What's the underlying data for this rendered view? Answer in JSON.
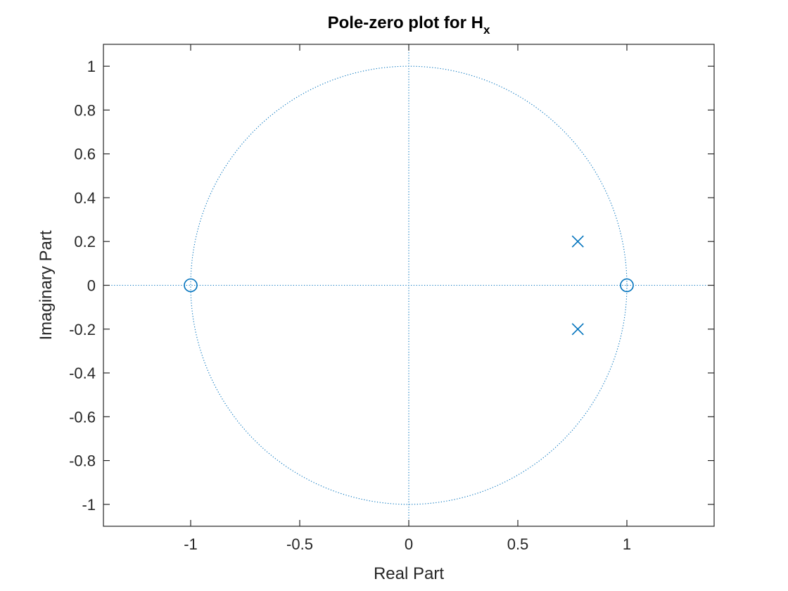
{
  "chart_data": {
    "type": "scatter",
    "title": "Pole-zero plot for H",
    "title_subscript": "x",
    "xlabel": "Real Part",
    "ylabel": "Imaginary Part",
    "xlim": [
      -1.4,
      1.4
    ],
    "ylim": [
      -1.1,
      1.1
    ],
    "xticks": [
      -1,
      -0.5,
      0,
      0.5,
      1
    ],
    "xtick_labels": [
      "-1",
      "-0.5",
      "0",
      "0.5",
      "1"
    ],
    "yticks": [
      -1,
      -0.8,
      -0.6,
      -0.4,
      -0.2,
      0,
      0.2,
      0.4,
      0.6,
      0.8,
      1
    ],
    "ytick_labels": [
      "-1",
      "-0.8",
      "-0.6",
      "-0.4",
      "-0.2",
      "0",
      "0.2",
      "0.4",
      "0.6",
      "0.8",
      "1"
    ],
    "grid": false,
    "unit_circle": true,
    "zeros": [
      {
        "x": -1,
        "y": 0
      },
      {
        "x": 1,
        "y": 0
      }
    ],
    "poles": [
      {
        "x": 0.775,
        "y": 0.2
      },
      {
        "x": 0.775,
        "y": -0.2
      }
    ],
    "colors": {
      "marker": "#0072BD",
      "axes": "#262626"
    }
  }
}
